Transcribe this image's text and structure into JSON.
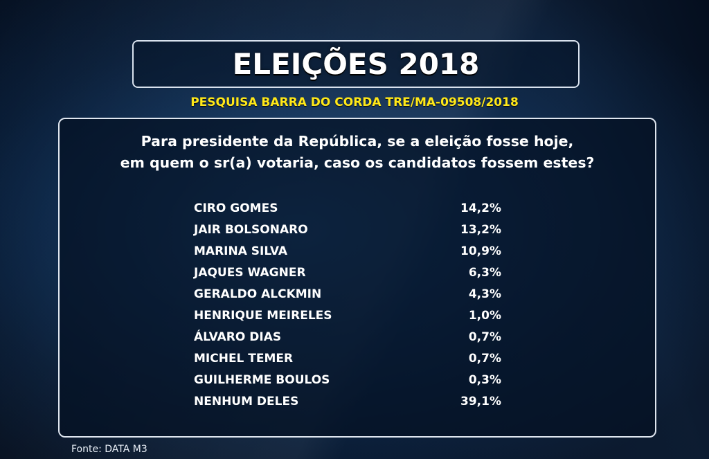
{
  "header": {
    "title": "ELEIÇÕES 2018",
    "subtitle": "PESQUISA BARRA DO CORDA TRE/MA-09508/2018"
  },
  "question": {
    "line1": "Para presidente da República, se a eleição fosse hoje,",
    "line2": "em quem o sr(a) votaria, caso os candidatos fossem estes?"
  },
  "chart_data": {
    "type": "table",
    "title": "ELEIÇÕES 2018",
    "subtitle": "PESQUISA BARRA DO CORDA TRE/MA-09508/2018",
    "categories": [
      "CIRO GOMES",
      "JAIR BOLSONARO",
      "MARINA SILVA",
      "JAQUES WAGNER",
      "GERALDO ALCKMIN",
      "HENRIQUE MEIRELES",
      "ÁLVARO DIAS",
      "MICHEL TEMER",
      "GUILHERME BOULOS",
      "NENHUM DELES"
    ],
    "values": [
      14.2,
      13.2,
      10.9,
      6.3,
      4.3,
      1.0,
      0.7,
      0.7,
      0.3,
      39.1
    ],
    "labels": [
      "14,2%",
      "13,2%",
      "10,9%",
      "6,3%",
      "4,3%",
      "1,0%",
      "0,7%",
      "0,7%",
      "0,3%",
      "39,1%"
    ]
  },
  "footer": {
    "source": "Fonte: DATA M3"
  },
  "colors": {
    "background": "#0d2e55",
    "title_text": "#ffffff",
    "subtitle_text": "#ffe819",
    "panel_border": "#dfe6ef"
  }
}
